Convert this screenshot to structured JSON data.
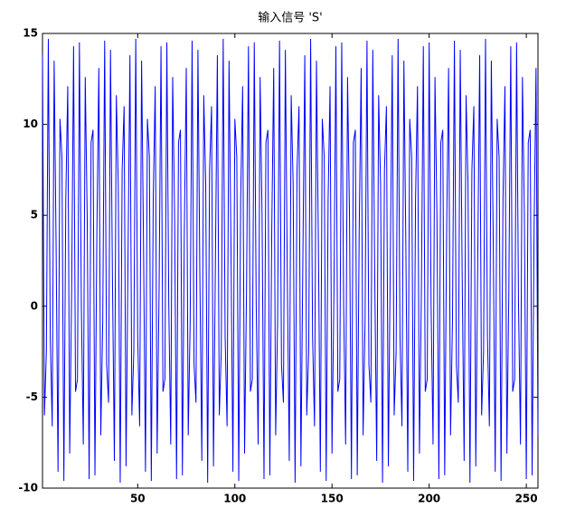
{
  "chart_data": {
    "type": "line",
    "title": "输入信号 'S'",
    "color": "#0000ff",
    "x": [
      1,
      2,
      3,
      4,
      5,
      6,
      7,
      8,
      9,
      10,
      11,
      12,
      13,
      14,
      15,
      16,
      17,
      18,
      19,
      20,
      21,
      22,
      23,
      24,
      25,
      26,
      27,
      28,
      29,
      30,
      31,
      32,
      33,
      34,
      35,
      36,
      37,
      38,
      39,
      40,
      41,
      42,
      43,
      44,
      45,
      46,
      47,
      48,
      49,
      50,
      51,
      52,
      53,
      54,
      55,
      56,
      57,
      58,
      59,
      60,
      61,
      62,
      63,
      64,
      65,
      66,
      67,
      68,
      69,
      70,
      71,
      72,
      73,
      74,
      75,
      76,
      77,
      78,
      79,
      80,
      81,
      82,
      83,
      84,
      85,
      86,
      87,
      88,
      89,
      90,
      91,
      92,
      93,
      94,
      95,
      96,
      97,
      98,
      99,
      100,
      101,
      102,
      103,
      104,
      105,
      106,
      107,
      108,
      109,
      110,
      111,
      112,
      113,
      114,
      115,
      116,
      117,
      118,
      119,
      120,
      121,
      122,
      123,
      124,
      125,
      126,
      127,
      128,
      129,
      130,
      131,
      132,
      133,
      134,
      135,
      136,
      137,
      138,
      139,
      140,
      141,
      142,
      143,
      144,
      145,
      146,
      147,
      148,
      149,
      150,
      151,
      152,
      153,
      154,
      155,
      156,
      157,
      158,
      159,
      160,
      161,
      162,
      163,
      164,
      165,
      166,
      167,
      168,
      169,
      170,
      171,
      172,
      173,
      174,
      175,
      176,
      177,
      178,
      179,
      180,
      181,
      182,
      183,
      184,
      185,
      186,
      187,
      188,
      189,
      190,
      191,
      192,
      193,
      194,
      195,
      196,
      197,
      198,
      199,
      200,
      201,
      202,
      203,
      204,
      205,
      206,
      207,
      208,
      209,
      210,
      211,
      212,
      213,
      214,
      215,
      216,
      217,
      218,
      219,
      220,
      221,
      222,
      223,
      224,
      225,
      226,
      227,
      228,
      229,
      230,
      231,
      232,
      233,
      234,
      235,
      236,
      237,
      238,
      239,
      240,
      241,
      242,
      243,
      244,
      245,
      246,
      247,
      248,
      249,
      250,
      251,
      252,
      253,
      254,
      255,
      256
    ],
    "values": [
      13.8,
      -6.0,
      -2.5,
      14.7,
      -1.7,
      -6.6,
      13.5,
      3.4,
      -9.1,
      10.3,
      8.2,
      -9.6,
      5.9,
      12.1,
      -8.1,
      0.8,
      14.3,
      -4.7,
      -4.0,
      14.5,
      0.0,
      -7.6,
      12.6,
      5.0,
      -9.5,
      9.0,
      9.7,
      -9.3,
      4.2,
      13.1,
      -7.1,
      -0.9,
      14.6,
      -3.2,
      -5.3,
      14.1,
      1.6,
      -8.5,
      11.6,
      6.7,
      -9.7,
      7.5,
      11.0,
      -8.8,
      2.5,
      13.8,
      -6.0,
      -2.5,
      14.7,
      -1.7,
      -6.6,
      13.5,
      3.4,
      -9.1,
      10.3,
      8.2,
      -9.6,
      5.9,
      12.1,
      -8.1,
      0.8,
      14.3,
      -4.7,
      -4.0,
      14.5,
      0.0,
      -7.6,
      12.6,
      5.0,
      -9.5,
      9.0,
      9.7,
      -9.3,
      4.2,
      13.1,
      -7.1,
      -0.9,
      14.6,
      -3.2,
      -5.3,
      14.1,
      1.6,
      -8.5,
      11.6,
      6.7,
      -9.7,
      7.5,
      11.0,
      -8.8,
      2.5,
      13.8,
      -6.0,
      -2.5,
      14.7,
      -1.7,
      -6.6,
      13.5,
      3.4,
      -9.1,
      10.3,
      8.2,
      -9.6,
      5.9,
      12.1,
      -8.1,
      0.8,
      14.3,
      -4.7,
      -4.0,
      14.5,
      0.0,
      -7.6,
      12.6,
      5.0,
      -9.5,
      9.0,
      9.7,
      -9.3,
      4.2,
      13.1,
      -7.1,
      -0.9,
      14.6,
      -3.2,
      -5.3,
      14.1,
      1.6,
      -8.5,
      11.6,
      6.7,
      -9.7,
      7.5,
      11.0,
      -8.8,
      2.5,
      13.8,
      -6.0,
      -2.5,
      14.7,
      -1.7,
      -6.6,
      13.5,
      3.4,
      -9.1,
      10.3,
      8.2,
      -9.6,
      5.9,
      12.1,
      -8.1,
      0.8,
      14.3,
      -4.7,
      -4.0,
      14.5,
      0.0,
      -7.6,
      12.6,
      5.0,
      -9.5,
      9.0,
      9.7,
      -9.3,
      4.2,
      13.1,
      -7.1,
      -0.9,
      14.6,
      -3.2,
      -5.3,
      14.1,
      1.6,
      -8.5,
      11.6,
      6.7,
      -9.7,
      7.5,
      11.0,
      -8.8,
      2.5,
      13.8,
      -6.0,
      -2.5,
      14.7,
      -1.7,
      -6.6,
      13.5,
      3.4,
      -9.1,
      10.3,
      8.2,
      -9.6,
      5.9,
      12.1,
      -8.1,
      0.8,
      14.3,
      -4.7,
      -4.0,
      14.5,
      0.0,
      -7.6,
      12.6,
      5.0,
      -9.5,
      9.0,
      9.7,
      -9.3,
      4.2,
      13.1,
      -7.1,
      -0.9,
      14.6,
      -3.2,
      -5.3,
      14.1,
      1.6,
      -8.5,
      11.6,
      6.7,
      -9.7,
      7.5,
      11.0,
      -8.8,
      2.5,
      13.8,
      -6.0,
      -2.5,
      14.7,
      -1.7,
      -6.6,
      13.5,
      3.4,
      -9.1,
      10.3,
      8.2,
      -9.6,
      5.9,
      12.1,
      -8.1,
      0.8,
      14.3,
      -4.7,
      -4.0,
      14.5,
      0.0,
      -7.6,
      12.6,
      5.0,
      -9.5,
      9.0,
      9.7,
      -9.3,
      4.2,
      13.1,
      -7.1
    ],
    "xlim": [
      1,
      256
    ],
    "ylim": [
      -10,
      15
    ],
    "xticks": [
      50,
      100,
      150,
      200,
      250
    ],
    "yticks": [
      -10,
      -5,
      0,
      5,
      10,
      15
    ]
  }
}
